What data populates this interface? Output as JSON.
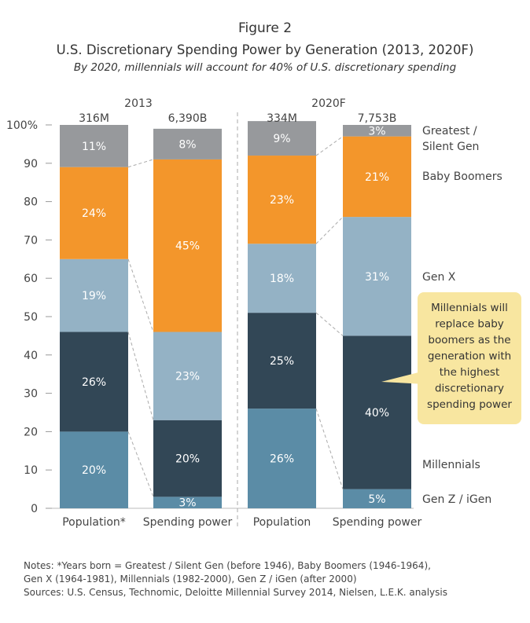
{
  "figure_label": "Figure 2",
  "title": "U.S. Discretionary Spending Power by Generation (2013, 2020F)",
  "subtitle": "By 2020, millennials will account for 40% of U.S. discretionary spending",
  "chart_data": {
    "type": "bar",
    "stacked": true,
    "ylim": [
      0,
      100
    ],
    "yticks": [
      "0",
      "10",
      "20",
      "30",
      "40",
      "50",
      "60",
      "70",
      "80",
      "90",
      "100%"
    ],
    "groups": [
      {
        "label": "2013",
        "divider_after": true
      },
      {
        "label": "2020F"
      }
    ],
    "categories": [
      {
        "label": "Population*",
        "total": "316M",
        "group": 0
      },
      {
        "label": "Spending power",
        "total": "6,390B",
        "group": 0
      },
      {
        "label": "Population",
        "total": "334M",
        "group": 1
      },
      {
        "label": "Spending power",
        "total": "7,753B",
        "group": 1
      }
    ],
    "series": [
      {
        "name": "Gen Z / iGen",
        "color": "#5b8ca6",
        "values": [
          20,
          3,
          26,
          5
        ],
        "labels": [
          "20%",
          "3%",
          "26%",
          "5%"
        ]
      },
      {
        "name": "Millennials",
        "color": "#324756",
        "values": [
          26,
          20,
          25,
          40
        ],
        "labels": [
          "26%",
          "20%",
          "25%",
          "40%"
        ]
      },
      {
        "name": "Gen X",
        "color": "#94b2c5",
        "values": [
          19,
          23,
          18,
          31
        ],
        "labels": [
          "19%",
          "23%",
          "18%",
          "31%"
        ]
      },
      {
        "name": "Baby Boomers",
        "color": "#f3962b",
        "values": [
          24,
          45,
          23,
          21
        ],
        "labels": [
          "24%",
          "45%",
          "23%",
          "21%"
        ]
      },
      {
        "name": "Greatest / Silent Gen",
        "color": "#97999c",
        "values": [
          11,
          8,
          9,
          3
        ],
        "labels": [
          "11%",
          "8%",
          "9%",
          "3%"
        ]
      }
    ],
    "legend": [
      {
        "lines": [
          "Greatest /",
          "Silent Gen"
        ],
        "series": 4
      },
      {
        "lines": [
          "Baby Boomers"
        ],
        "series": 3
      },
      {
        "lines": [
          "Gen X"
        ],
        "series": 2
      },
      {
        "lines": [
          "Millennials"
        ],
        "series": 1
      },
      {
        "lines": [
          "Gen Z / iGen"
        ],
        "series": 0
      }
    ],
    "callout": {
      "lines": [
        "Millennials will",
        "replace baby",
        "boomers as the",
        "generation with",
        "the highest",
        "discretionary",
        "spending power"
      ],
      "fill": "#f8e6a0"
    }
  },
  "notes": [
    "Notes: *Years born = Greatest / Silent Gen (before 1946), Baby Boomers (1946-1964),",
    "Gen X (1964-1981), Millennials (1982-2000), Gen Z / iGen (after 2000)",
    "Sources: U.S. Census, Technomic, Deloitte Millennial Survey 2014, Nielsen, L.E.K. analysis"
  ]
}
